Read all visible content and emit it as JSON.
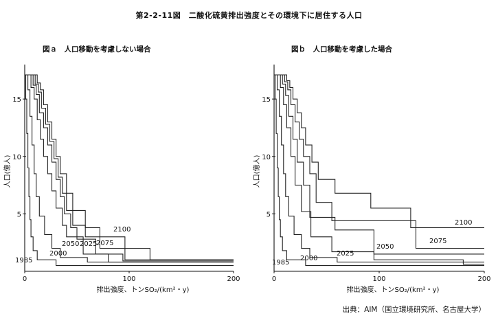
{
  "title": "第2-2-11図　二酸化硫黄排出強度とその環境下に居住する人口",
  "source": "出典：AIM（国立環境研究所、名古屋大学）",
  "chart_data": [
    {
      "type": "line",
      "panel_title": "図ａ　人口移動を考慮しない場合",
      "xlabel": "排出強度、トンSO₂/(km²・y)",
      "ylabel": "人口(億人)",
      "xlim": [
        0,
        200
      ],
      "ylim": [
        0,
        18
      ],
      "xticks": [
        0,
        100,
        200
      ],
      "yticks": [
        5,
        10,
        15
      ],
      "series": [
        {
          "name": "1985",
          "x": [
            0,
            1,
            1,
            2,
            2,
            3,
            3,
            4,
            4,
            5,
            5,
            6,
            6,
            8,
            8,
            12,
            12,
            30,
            30,
            200
          ],
          "y": [
            17.1,
            17.1,
            15.0,
            15.0,
            12.0,
            12.0,
            9.0,
            9.0,
            6.5,
            6.5,
            4.5,
            4.5,
            3.0,
            3.0,
            1.8,
            1.8,
            1.0,
            1.0,
            0.5,
            0.5
          ]
        },
        {
          "name": "2000",
          "x": [
            0,
            3,
            3,
            5,
            5,
            7,
            7,
            9,
            9,
            11,
            11,
            14,
            14,
            19,
            19,
            26,
            26,
            34,
            34,
            60,
            60,
            200
          ],
          "y": [
            17.1,
            17.1,
            15.8,
            15.8,
            13.5,
            13.5,
            11.0,
            11.0,
            8.5,
            8.5,
            6.5,
            6.5,
            4.8,
            4.8,
            3.2,
            3.2,
            2.0,
            2.0,
            1.2,
            1.2,
            0.8,
            0.8
          ]
        },
        {
          "name": "2025",
          "x": [
            0,
            6,
            6,
            9,
            9,
            12,
            12,
            15,
            15,
            18,
            18,
            22,
            22,
            26,
            26,
            30,
            30,
            36,
            36,
            40,
            40,
            56,
            56,
            80,
            80,
            200
          ],
          "y": [
            17.1,
            17.1,
            16.0,
            16.0,
            15.0,
            15.0,
            13.2,
            13.2,
            11.5,
            11.5,
            10.0,
            10.0,
            8.5,
            8.5,
            7.0,
            7.0,
            5.5,
            5.5,
            4.0,
            4.0,
            3.0,
            3.0,
            1.5,
            1.5,
            0.8,
            0.8
          ]
        },
        {
          "name": "2050",
          "x": [
            0,
            8,
            8,
            11,
            11,
            14,
            14,
            18,
            18,
            22,
            22,
            26,
            26,
            30,
            30,
            34,
            34,
            38,
            38,
            44,
            44,
            50,
            50,
            68,
            68,
            94,
            94,
            200
          ],
          "y": [
            17.1,
            17.1,
            16.2,
            16.2,
            15.4,
            15.4,
            13.8,
            13.8,
            12.5,
            12.5,
            11.0,
            11.0,
            9.5,
            9.5,
            8.0,
            8.0,
            6.5,
            6.5,
            5.0,
            5.0,
            3.8,
            3.8,
            2.8,
            2.8,
            1.5,
            1.5,
            0.9,
            0.9
          ]
        },
        {
          "name": "2075",
          "x": [
            0,
            10,
            10,
            13,
            13,
            16,
            16,
            20,
            20,
            24,
            24,
            28,
            28,
            32,
            32,
            36,
            36,
            40,
            40,
            46,
            46,
            58,
            58,
            72,
            72,
            96,
            96,
            200
          ],
          "y": [
            17.1,
            17.1,
            16.3,
            16.3,
            15.6,
            15.6,
            14.2,
            14.2,
            12.8,
            12.8,
            11.3,
            11.3,
            9.8,
            9.8,
            8.2,
            8.2,
            6.8,
            6.8,
            5.3,
            5.3,
            4.0,
            4.0,
            3.0,
            3.0,
            2.0,
            2.0,
            1.0,
            1.0
          ]
        },
        {
          "name": "2100",
          "x": [
            0,
            12,
            12,
            15,
            15,
            18,
            18,
            22,
            22,
            26,
            26,
            30,
            30,
            34,
            34,
            40,
            40,
            46,
            46,
            58,
            58,
            72,
            72,
            96,
            96,
            120,
            120,
            200
          ],
          "y": [
            17.1,
            17.1,
            16.4,
            16.4,
            15.8,
            15.8,
            14.5,
            14.5,
            13.0,
            13.0,
            11.5,
            11.5,
            10.0,
            10.0,
            8.5,
            8.5,
            6.8,
            6.8,
            5.3,
            5.3,
            3.8,
            3.8,
            3.0,
            3.0,
            2.0,
            2.0,
            1.0,
            1.0
          ]
        }
      ]
    },
    {
      "type": "line",
      "panel_title": "図ｂ　人口移動を考慮した場合",
      "xlabel": "排出強度、トンSO₂/(km²・y)",
      "ylabel": "人口(億人)",
      "xlim": [
        0,
        200
      ],
      "ylim": [
        0,
        18
      ],
      "xticks": [
        0,
        100,
        200
      ],
      "yticks": [
        5,
        10,
        15
      ],
      "series": [
        {
          "name": "1985",
          "x": [
            0,
            1,
            1,
            2,
            2,
            3,
            3,
            4,
            4,
            5,
            5,
            6,
            6,
            8,
            8,
            12,
            12,
            30,
            30,
            200
          ],
          "y": [
            17.1,
            17.1,
            15.0,
            15.0,
            12.0,
            12.0,
            9.0,
            9.0,
            6.5,
            6.5,
            4.5,
            4.5,
            3.0,
            3.0,
            1.8,
            1.8,
            1.0,
            1.0,
            0.5,
            0.5
          ]
        },
        {
          "name": "2000",
          "x": [
            0,
            3,
            3,
            5,
            5,
            7,
            7,
            9,
            9,
            11,
            11,
            14,
            14,
            19,
            19,
            26,
            26,
            34,
            34,
            60,
            60,
            200
          ],
          "y": [
            17.1,
            17.1,
            15.8,
            15.8,
            13.5,
            13.5,
            11.0,
            11.0,
            8.5,
            8.5,
            6.5,
            6.5,
            4.8,
            4.8,
            3.2,
            3.2,
            2.0,
            2.0,
            1.2,
            1.2,
            0.8,
            0.8
          ]
        },
        {
          "name": "2025",
          "x": [
            0,
            6,
            6,
            9,
            9,
            12,
            12,
            16,
            16,
            20,
            20,
            26,
            26,
            35,
            35,
            55,
            55,
            95,
            95,
            180,
            180,
            200
          ],
          "y": [
            17.1,
            17.1,
            16.0,
            16.0,
            14.5,
            14.5,
            12.5,
            12.5,
            10.0,
            10.0,
            7.5,
            7.5,
            5.2,
            5.2,
            3.0,
            3.0,
            1.7,
            1.7,
            1.0,
            1.0,
            0.6,
            0.6
          ]
        },
        {
          "name": "2050",
          "x": [
            0,
            8,
            8,
            11,
            11,
            14,
            14,
            18,
            18,
            22,
            22,
            28,
            28,
            34,
            34,
            58,
            58,
            95,
            95,
            200
          ],
          "y": [
            17.1,
            17.1,
            16.3,
            16.3,
            15.3,
            15.3,
            13.5,
            13.5,
            11.5,
            11.5,
            9.5,
            9.5,
            7.5,
            7.5,
            4.7,
            4.7,
            3.6,
            3.6,
            1.5,
            1.5
          ]
        },
        {
          "name": "2075",
          "x": [
            0,
            10,
            10,
            13,
            13,
            16,
            16,
            20,
            20,
            24,
            24,
            28,
            28,
            34,
            34,
            40,
            40,
            55,
            55,
            135,
            135,
            200
          ],
          "y": [
            17.1,
            17.1,
            16.5,
            16.5,
            15.8,
            15.8,
            14.5,
            14.5,
            13.0,
            13.0,
            11.5,
            11.5,
            10.0,
            10.0,
            8.5,
            8.5,
            6.0,
            6.0,
            4.4,
            4.4,
            2.0,
            2.0
          ]
        },
        {
          "name": "2100",
          "x": [
            0,
            12,
            12,
            15,
            15,
            18,
            18,
            22,
            22,
            26,
            26,
            30,
            30,
            36,
            36,
            42,
            42,
            58,
            58,
            92,
            92,
            130,
            130,
            200
          ],
          "y": [
            17.1,
            17.1,
            16.6,
            16.6,
            16.0,
            16.0,
            15.0,
            15.0,
            13.8,
            13.8,
            12.5,
            12.5,
            11.0,
            11.0,
            9.5,
            9.5,
            8.0,
            8.0,
            6.8,
            6.8,
            5.5,
            5.5,
            3.8,
            3.8
          ]
        }
      ]
    }
  ]
}
